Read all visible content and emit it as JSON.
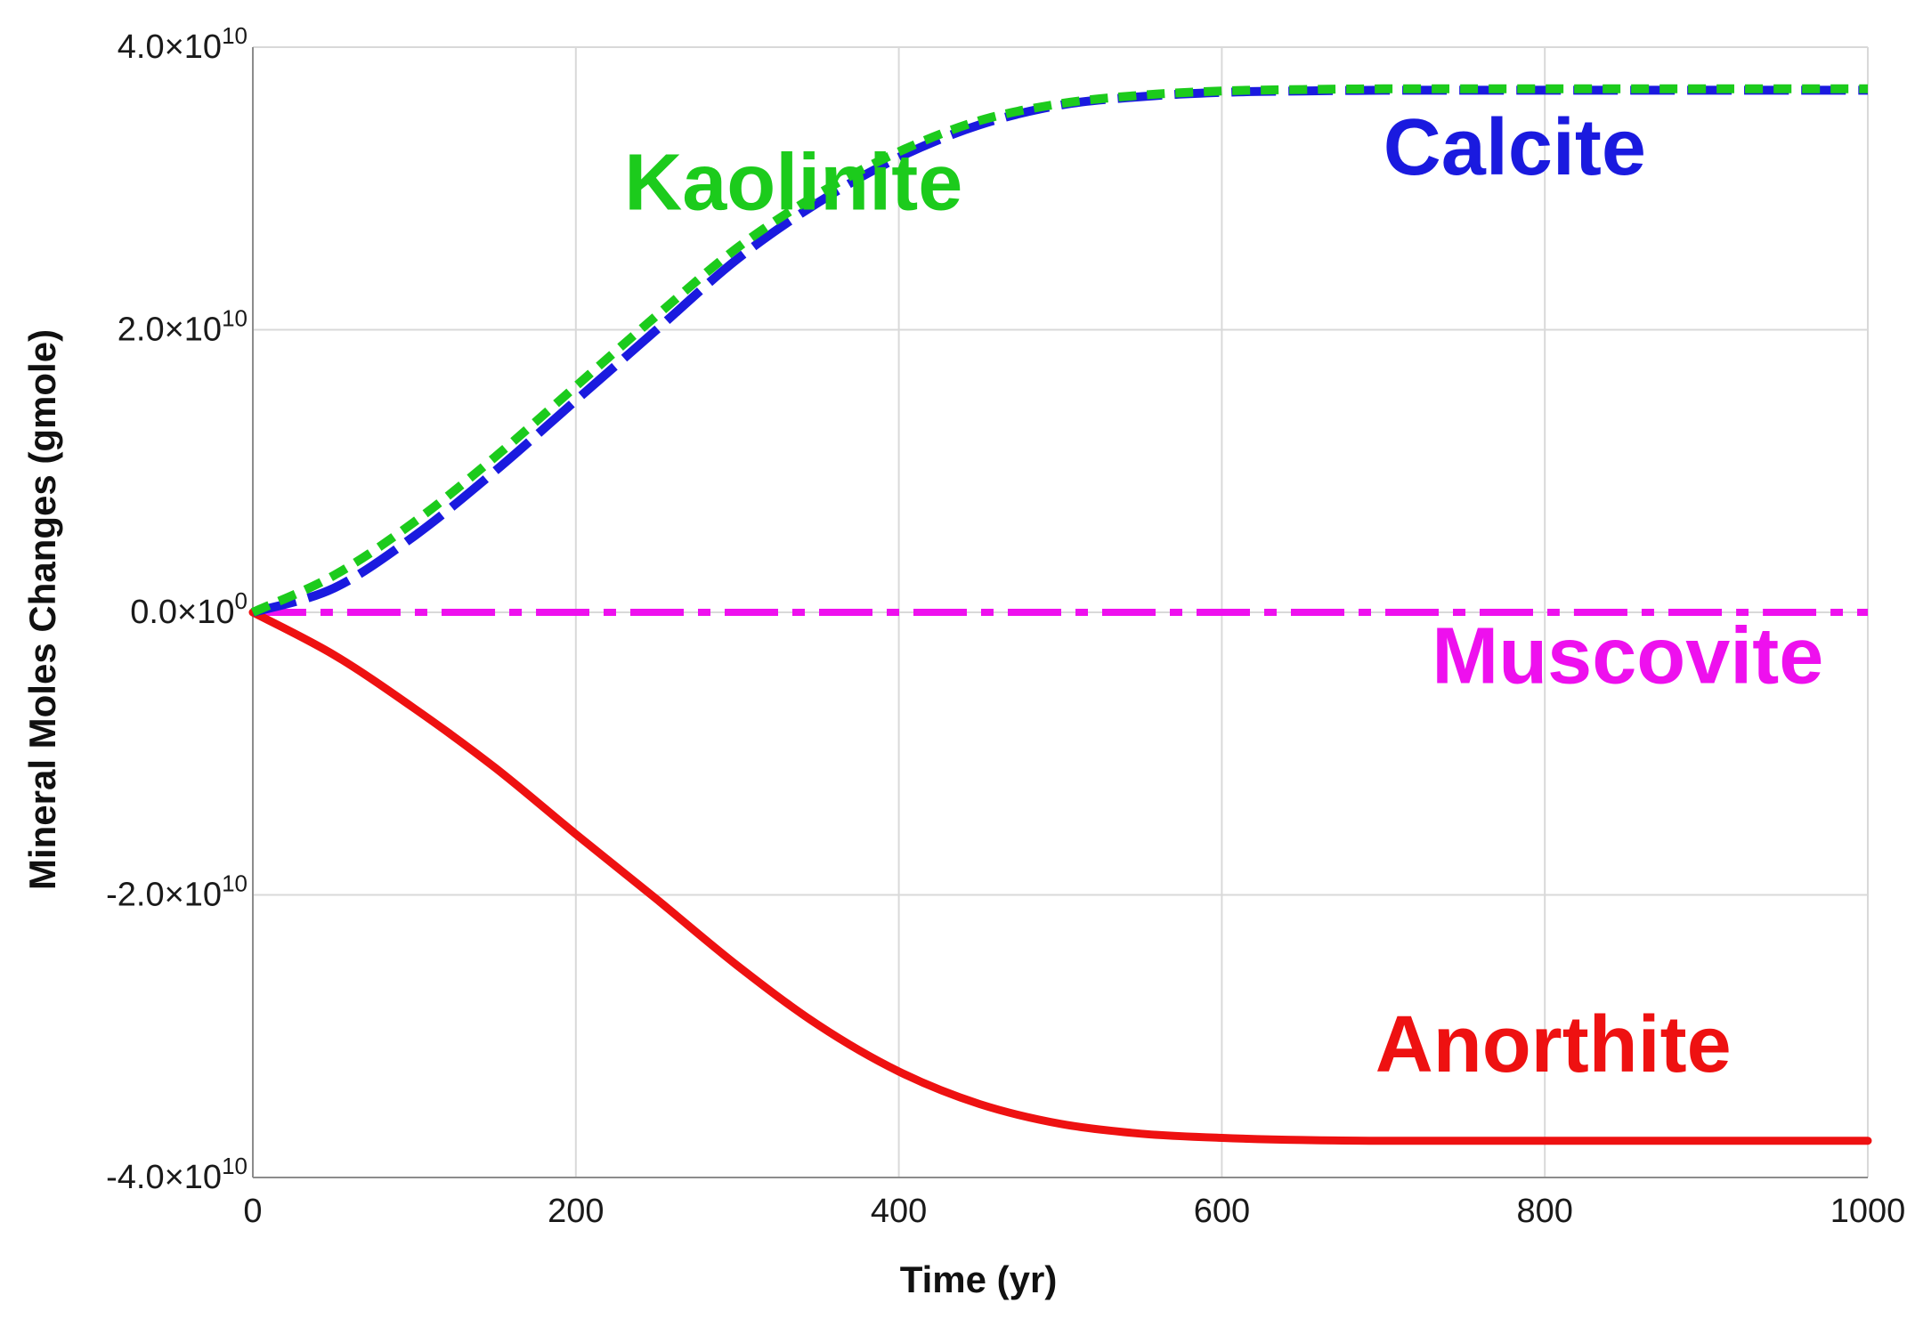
{
  "chart_data": {
    "type": "line",
    "title": "",
    "xlabel": "Time (yr)",
    "ylabel": "Mineral Moles Changes (gmole)",
    "xlim": [
      0,
      1000
    ],
    "ylim": [
      -40000000000,
      40000000000
    ],
    "grid": true,
    "x_ticks": [
      {
        "value": 0,
        "label": "0"
      },
      {
        "value": 200,
        "label": "200"
      },
      {
        "value": 400,
        "label": "400"
      },
      {
        "value": 600,
        "label": "600"
      },
      {
        "value": 800,
        "label": "800"
      },
      {
        "value": 1000,
        "label": "1000"
      }
    ],
    "y_ticks": [
      {
        "value": 40000000000,
        "mantissa": "4.0×10",
        "exponent": "10"
      },
      {
        "value": 20000000000,
        "mantissa": "2.0×10",
        "exponent": "10"
      },
      {
        "value": 0,
        "mantissa": "0.0×10",
        "exponent": "0"
      },
      {
        "value": -20000000000,
        "mantissa": "-2.0×10",
        "exponent": "10"
      },
      {
        "value": -40000000000,
        "mantissa": "-4.0×10",
        "exponent": "10"
      }
    ],
    "series": [
      {
        "name": "Kaolinite",
        "color": "#1ccb1c",
        "line_style": "dotted",
        "x": [
          0,
          50,
          100,
          150,
          200,
          250,
          300,
          350,
          400,
          450,
          500,
          550,
          600,
          650,
          700,
          800,
          900,
          1000
        ],
        "y": [
          0,
          2600000000,
          6400000000,
          11000000000,
          16000000000,
          21000000000,
          25800000000,
          29600000000,
          32600000000,
          34800000000,
          36000000000,
          36600000000,
          36900000000,
          37000000000,
          37050000000,
          37050000000,
          37050000000,
          37050000000
        ]
      },
      {
        "name": "Calcite",
        "color": "#1a1adf",
        "line_style": "dashed",
        "x": [
          0,
          50,
          100,
          150,
          200,
          250,
          300,
          350,
          400,
          450,
          500,
          550,
          600,
          650,
          700,
          800,
          900,
          1000
        ],
        "y": [
          0,
          1700000000,
          5400000000,
          10000000000,
          15000000000,
          20000000000,
          25000000000,
          29000000000,
          32200000000,
          34500000000,
          35900000000,
          36500000000,
          36800000000,
          36900000000,
          36950000000,
          36950000000,
          36950000000,
          36950000000
        ]
      },
      {
        "name": "Muscovite",
        "color": "#ee10ee",
        "line_style": "dash-dot",
        "x": [
          0,
          200,
          400,
          600,
          800,
          1000
        ],
        "y": [
          0,
          0,
          0,
          0,
          0,
          0
        ]
      },
      {
        "name": "Anorthite",
        "color": "#ee1111",
        "line_style": "solid",
        "x": [
          0,
          50,
          100,
          150,
          200,
          250,
          300,
          350,
          400,
          450,
          500,
          550,
          600,
          650,
          700,
          800,
          900,
          1000
        ],
        "y": [
          0,
          -3000000000,
          -6800000000,
          -11000000000,
          -15700000000,
          -20300000000,
          -25000000000,
          -29200000000,
          -32500000000,
          -34800000000,
          -36200000000,
          -36900000000,
          -37200000000,
          -37350000000,
          -37400000000,
          -37400000000,
          -37400000000,
          -37400000000
        ]
      }
    ],
    "series_labels": [
      {
        "name": "Kaolinite",
        "text": "Kaolinite",
        "color": "#1ccb1c",
        "x": 230,
        "y": 28500000000
      },
      {
        "name": "Calcite",
        "text": "Calcite",
        "color": "#1a1adf",
        "x": 700,
        "y": 31000000000
      },
      {
        "name": "Muscovite",
        "text": "Muscovite",
        "color": "#ee10ee",
        "x": 730,
        "y": -5000000000
      },
      {
        "name": "Anorthite",
        "text": "Anorthite",
        "color": "#ee1111",
        "x": 695,
        "y": -32500000000
      }
    ]
  }
}
